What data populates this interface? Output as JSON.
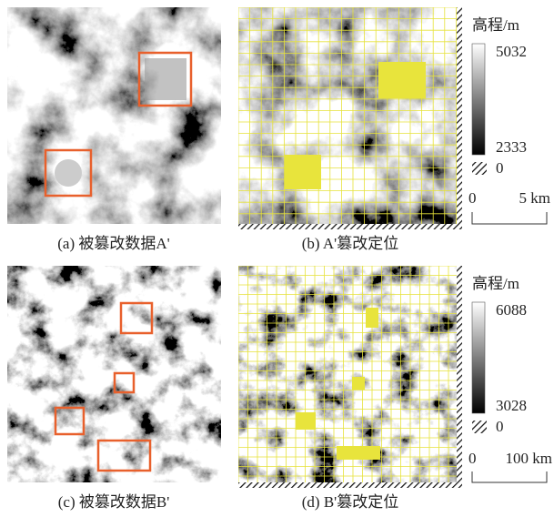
{
  "panels": [
    {
      "caption": "(a) 被篡改数据A'"
    },
    {
      "caption": "(b) A'篡改定位"
    },
    {
      "caption": "(c) 被篡改数据B'"
    },
    {
      "caption": "(d) B'篡改定位"
    }
  ],
  "legends": [
    {
      "title": "高程/m",
      "max": "5032",
      "min": "2333",
      "nodata": "0",
      "scale_start": "0",
      "scale_end": "5 km"
    },
    {
      "title": "高程/m",
      "max": "6088",
      "min": "3028",
      "nodata": "0",
      "scale_start": "0",
      "scale_end": "100 km"
    }
  ]
}
